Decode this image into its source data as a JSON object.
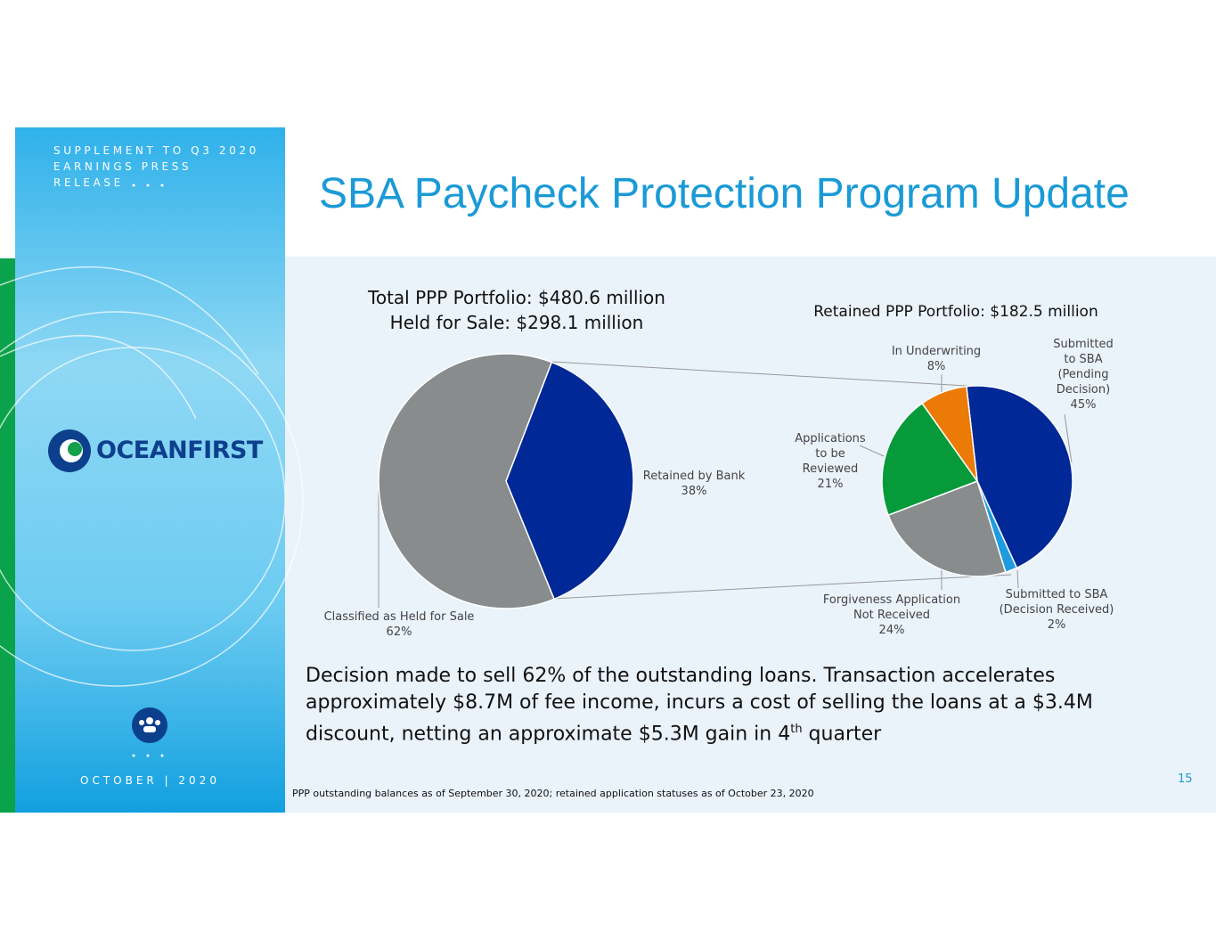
{
  "header": {
    "supplement": "SUPPLEMENT TO Q3 2020 EARNINGS PRESS RELEASE",
    "logo": "OceanFirst",
    "date": "OCTOBER | 2020",
    "title": "SBA Paycheck Protection Program Update"
  },
  "chart_data": [
    {
      "type": "pie",
      "title": "Total PPP Portfolio: $480.6 million",
      "subtitle": "Held for Sale: $298.1 million",
      "categories": [
        "Retained by Bank",
        "Classified as Held for Sale"
      ],
      "values": [
        38,
        62
      ],
      "value_labels": [
        "38%",
        "62%"
      ],
      "colors": [
        "#002896",
        "#898c8c"
      ]
    },
    {
      "type": "pie",
      "title": "Retained PPP Portfolio: $182.5 million",
      "categories": [
        "Submitted to SBA (Pending Decision)",
        "Submitted to SBA (Decision Received)",
        "Forgiveness Application Not Received",
        "Applications to be Reviewed",
        "In Underwriting"
      ],
      "values": [
        45,
        2,
        24,
        21,
        8
      ],
      "value_labels": [
        "45%",
        "2%",
        "24%",
        "21%",
        "8%"
      ],
      "colors": [
        "#002896",
        "#1f9be0",
        "#898c8c",
        "#069a3a",
        "#ec7a06"
      ]
    }
  ],
  "body": {
    "text": "Decision made to sell 62% of the outstanding loans. Transaction accelerates approximately $8.7M of fee income, incurs a cost of selling the loans at a $3.4M discount, netting an approximate $5.3M gain in 4",
    "superscript": "th",
    "tail": " quarter"
  },
  "footnote": "PPP outstanding balances as of September 30, 2020; retained application statuses as of October 23, 2020",
  "page_number": "15"
}
